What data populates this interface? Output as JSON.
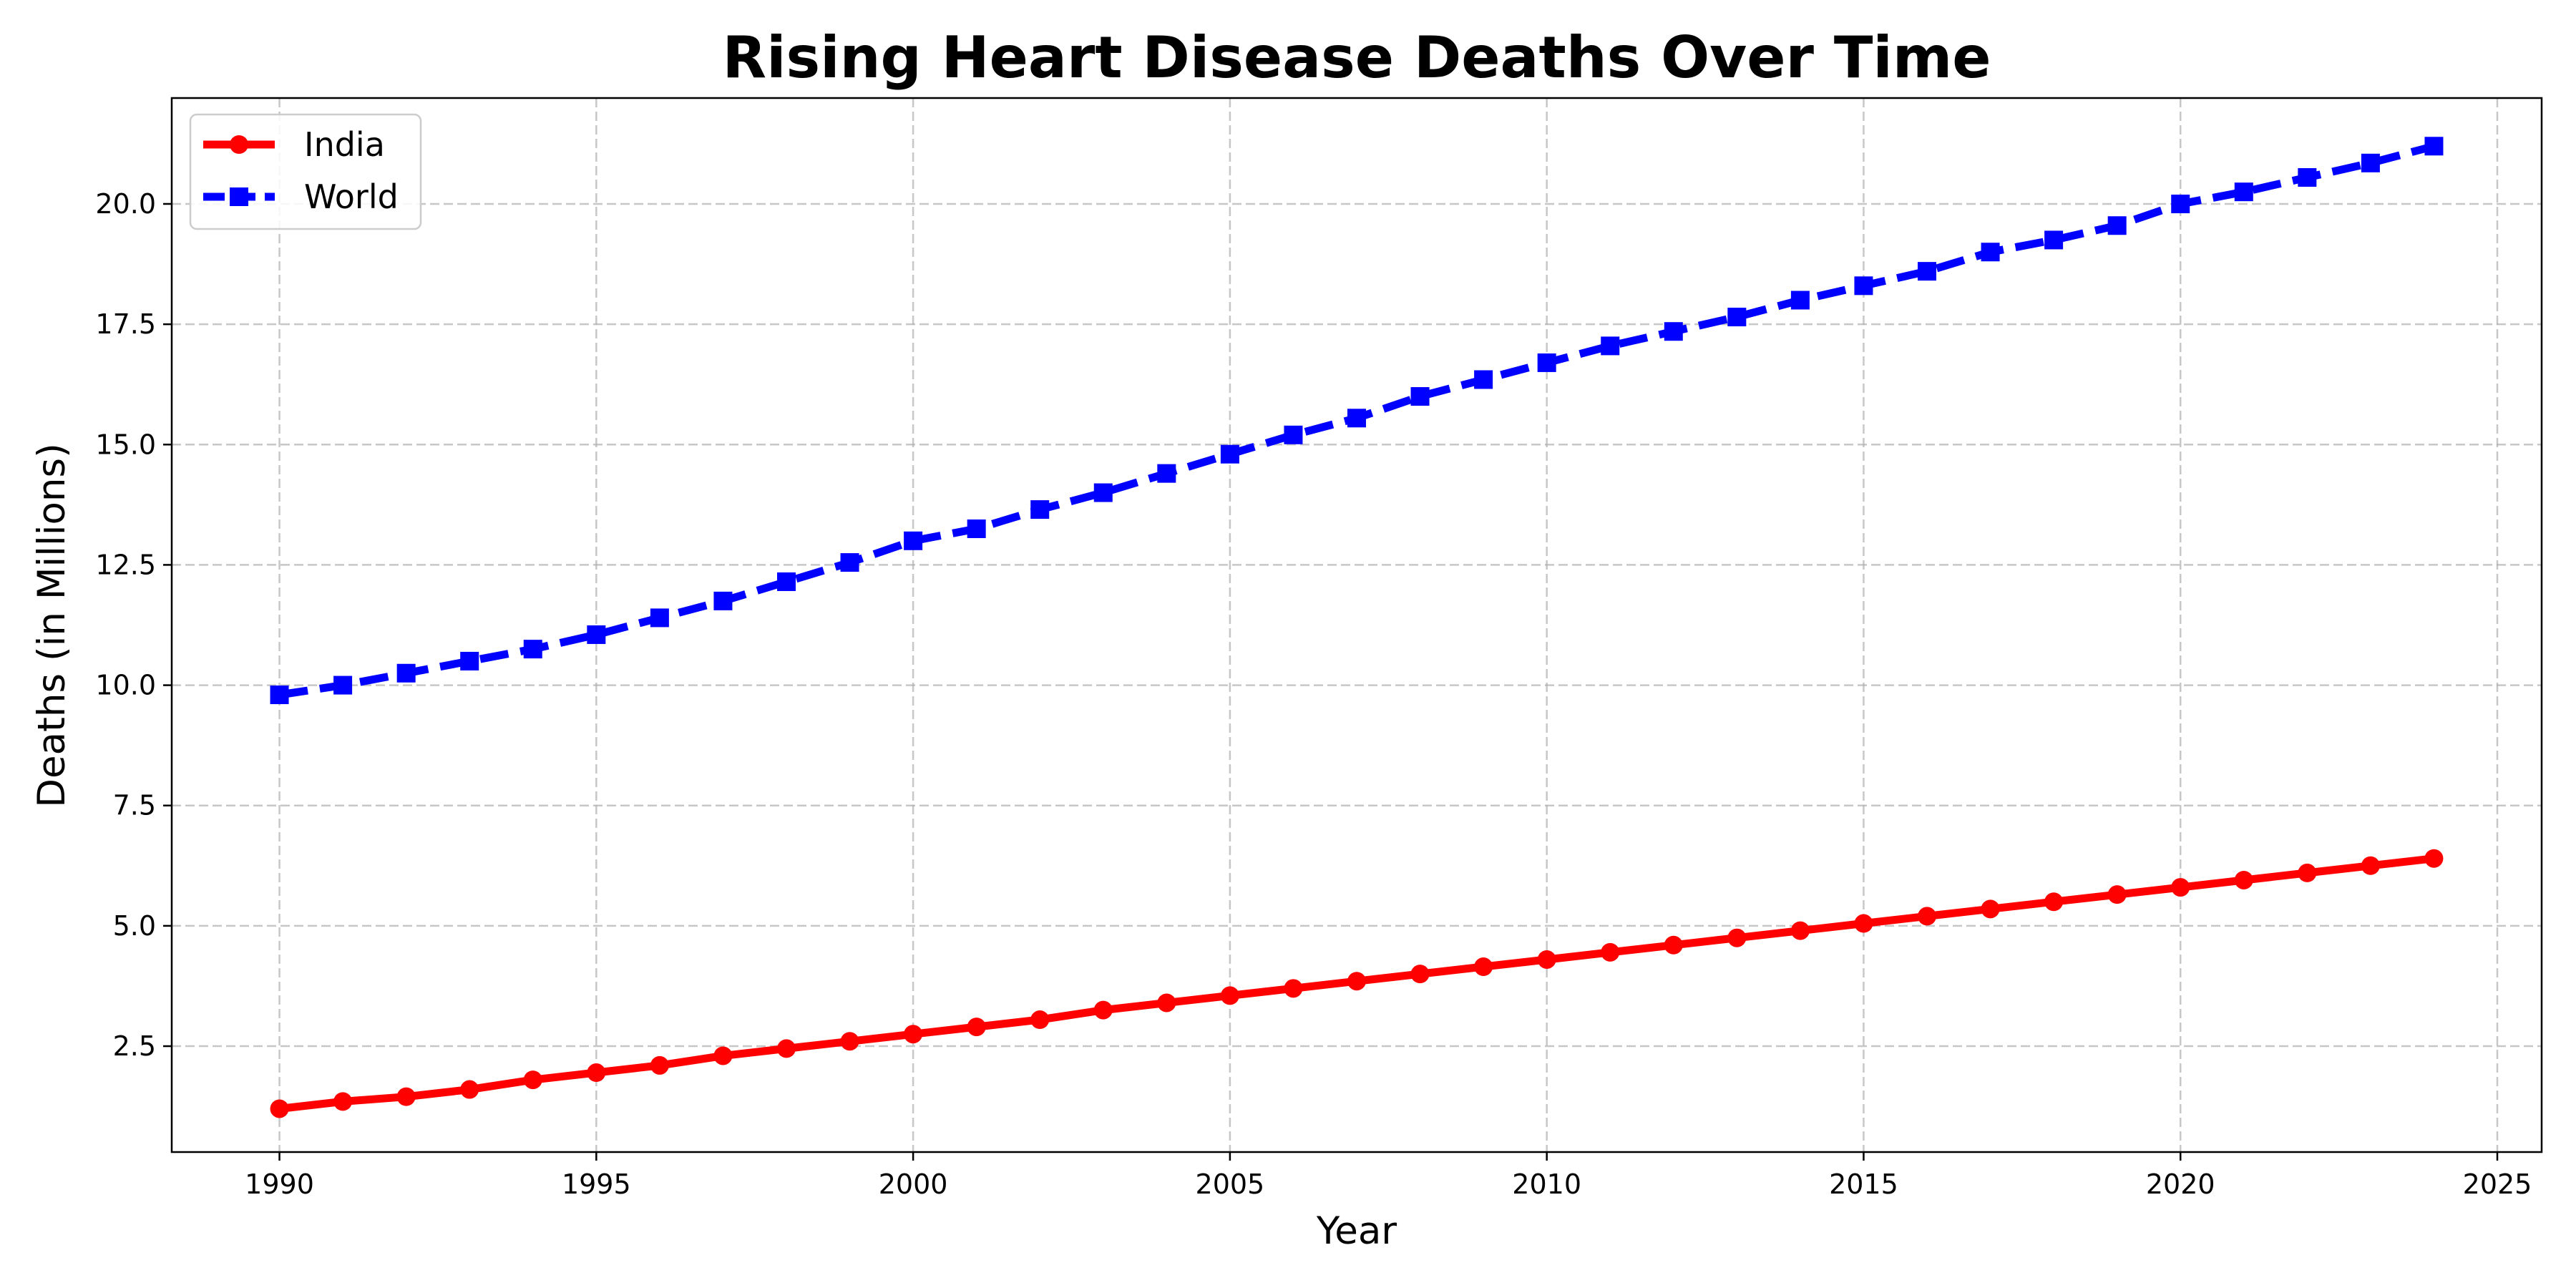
{
  "chart_data": {
    "type": "line",
    "title": "Rising Heart Disease Deaths Over Time",
    "xlabel": "Year",
    "ylabel": "Deaths (in Millions)",
    "xlim": [
      1988.3,
      2025.7
    ],
    "ylim": [
      0.3,
      22.2
    ],
    "xticks": [
      1990,
      1995,
      2000,
      2005,
      2010,
      2015,
      2020,
      2025
    ],
    "xtick_labels": [
      "1990",
      "1995",
      "2000",
      "2005",
      "2010",
      "2015",
      "2020",
      "2025"
    ],
    "yticks": [
      2.5,
      5.0,
      7.5,
      10.0,
      12.5,
      15.0,
      17.5,
      20.0
    ],
    "ytick_labels": [
      "2.5",
      "5.0",
      "7.5",
      "10.0",
      "12.5",
      "15.0",
      "17.5",
      "20.0"
    ],
    "grid": true,
    "legend_position": "top-left",
    "x": [
      1990,
      1991,
      1992,
      1993,
      1994,
      1995,
      1996,
      1997,
      1998,
      1999,
      2000,
      2001,
      2002,
      2003,
      2004,
      2005,
      2006,
      2007,
      2008,
      2009,
      2010,
      2011,
      2012,
      2013,
      2014,
      2015,
      2016,
      2017,
      2018,
      2019,
      2020,
      2021,
      2022,
      2023,
      2024
    ],
    "series": [
      {
        "name": "India",
        "color": "#ff0000",
        "marker": "circle",
        "line_style": "solid",
        "values": [
          1.2,
          1.35,
          1.45,
          1.6,
          1.8,
          1.95,
          2.1,
          2.3,
          2.45,
          2.6,
          2.75,
          2.9,
          3.05,
          3.25,
          3.4,
          3.55,
          3.7,
          3.85,
          4.0,
          4.15,
          4.3,
          4.45,
          4.6,
          4.75,
          4.9,
          5.05,
          5.2,
          5.35,
          5.5,
          5.65,
          5.8,
          5.95,
          6.1,
          6.25,
          6.4
        ]
      },
      {
        "name": "World",
        "color": "#0000ff",
        "marker": "square",
        "line_style": "dashed",
        "values": [
          9.8,
          10.0,
          10.25,
          10.5,
          10.75,
          11.05,
          11.4,
          11.75,
          12.15,
          12.55,
          13.0,
          13.25,
          13.65,
          14.0,
          14.4,
          14.8,
          15.2,
          15.55,
          16.0,
          16.35,
          16.7,
          17.05,
          17.35,
          17.65,
          18.0,
          18.3,
          18.6,
          19.0,
          19.25,
          19.55,
          20.0,
          20.25,
          20.55,
          20.85,
          21.2
        ]
      }
    ]
  }
}
